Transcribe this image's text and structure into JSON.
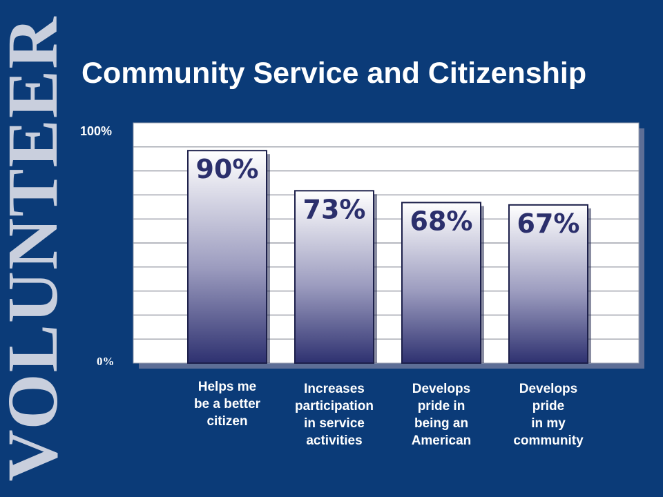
{
  "side_text": "VOLUNTEER",
  "colors": {
    "background": "#0b3b78",
    "bar_top": "#ffffff",
    "bar_bottom": "#2e3170",
    "bar_outline": "#1c1f4a",
    "bar_value": "#2b2f6c"
  },
  "chart_data": {
    "type": "bar",
    "title": "Community Service and Citizenship",
    "categories": [
      "Helps me\nbe a better\ncitizen",
      "Increases\nparticipation\nin service\nactivities",
      "Develops\npride in\nbeing an\nAmerican",
      "Develops\npride\nin my\ncommunity"
    ],
    "values": [
      90,
      73,
      68,
      67
    ],
    "value_labels": [
      "90%",
      "73%",
      "68%",
      "67%"
    ],
    "ylim": [
      0,
      100
    ],
    "yticks": [
      "0%",
      "100%"
    ],
    "grid": true,
    "legend": "none"
  }
}
